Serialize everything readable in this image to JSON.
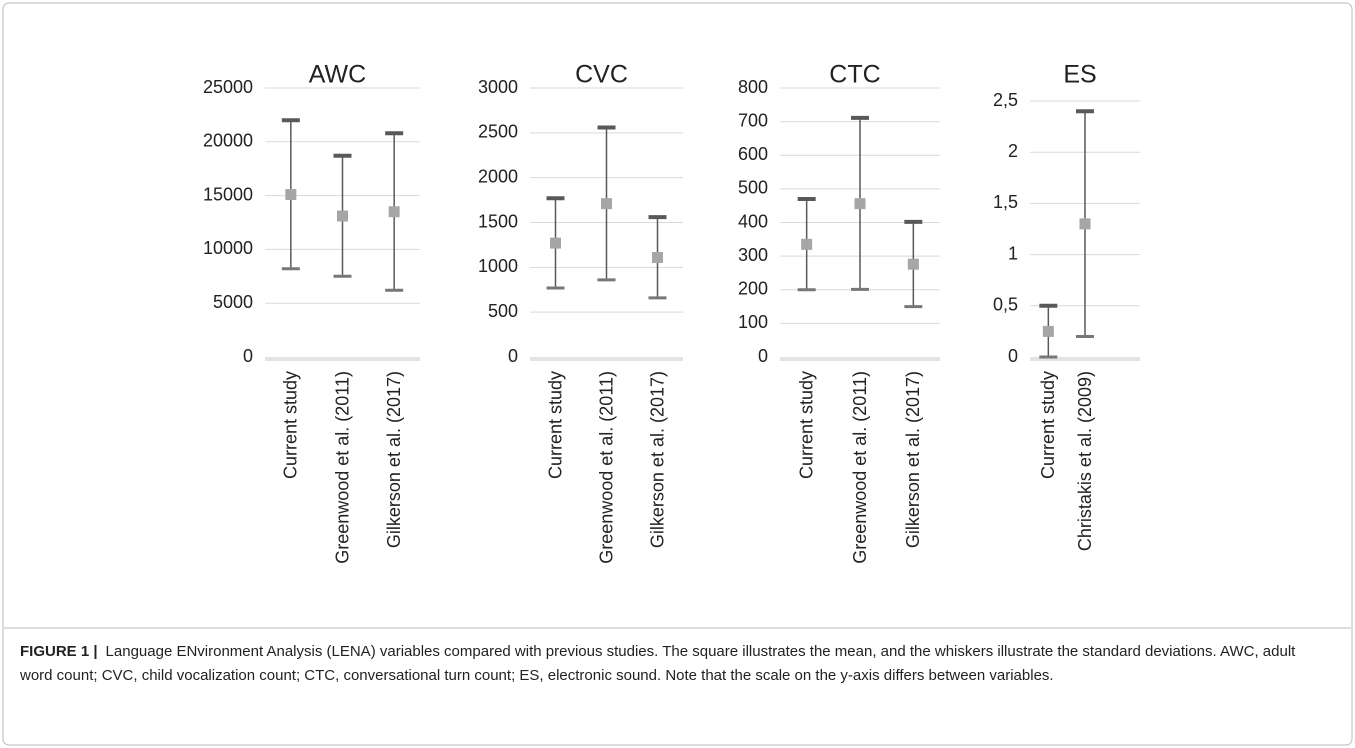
{
  "chart_data": [
    {
      "type": "errorbar",
      "title": "AWC",
      "categories": [
        "Current study",
        "Greenwood et al. (2011)",
        "Gilkerson et al. (2017)"
      ],
      "values": [
        15100,
        13100,
        13500
      ],
      "errors": [
        6900,
        5600,
        7300
      ],
      "ylim": [
        0,
        25000
      ],
      "yticks": [
        0,
        5000,
        10000,
        15000,
        20000,
        25000
      ],
      "grid": true,
      "whisker_color": "#595959",
      "marker_color": "#a6a6a6"
    },
    {
      "type": "errorbar",
      "title": "CVC",
      "categories": [
        "Current study",
        "Greenwood et al. (2011)",
        "Gilkerson et al. (2017)"
      ],
      "values": [
        1270,
        1710,
        1110
      ],
      "errors": [
        500,
        850,
        450
      ],
      "ylim": [
        0,
        3000
      ],
      "yticks": [
        0,
        500,
        1000,
        1500,
        2000,
        2500,
        3000
      ],
      "grid": true,
      "whisker_color": "#595959",
      "marker_color": "#a6a6a6"
    },
    {
      "type": "errorbar",
      "title": "CTC",
      "categories": [
        "Current study",
        "Greenwood et al. (2011)",
        "Gilkerson et al. (2017)"
      ],
      "values": [
        335,
        456,
        276
      ],
      "errors": [
        135,
        255,
        126
      ],
      "ylim": [
        0,
        800
      ],
      "yticks": [
        0,
        100,
        200,
        300,
        400,
        500,
        600,
        700,
        800
      ],
      "grid": true,
      "whisker_color": "#595959",
      "marker_color": "#a6a6a6"
    },
    {
      "type": "errorbar",
      "title": "ES",
      "categories": [
        "Current study",
        "Christakis et al. (2009)",
        null
      ],
      "values": [
        0.25,
        1.3,
        null
      ],
      "errors": [
        0.25,
        1.1,
        null
      ],
      "ylim": [
        0,
        2.5
      ],
      "yticks": [
        0,
        {
          "value": 0.5,
          "label": "0,5"
        },
        1,
        {
          "value": 1.5,
          "label": "1,5"
        },
        2,
        {
          "value": 2.5,
          "label": "2,5"
        }
      ],
      "grid": true,
      "whisker_color": "#595959",
      "marker_color": "#a6a6a6"
    }
  ],
  "caption": {
    "label": "FIGURE 1 |",
    "text": "Language ENvironment Analysis (LENA) variables compared with previous studies. The square illustrates the mean, and the whiskers illustrate the standard deviations. AWC, adult word count; CVC, child vocalization count; CTC, conversational turn count; ES, electronic sound. Note that the scale on the y-axis differs between variables."
  }
}
